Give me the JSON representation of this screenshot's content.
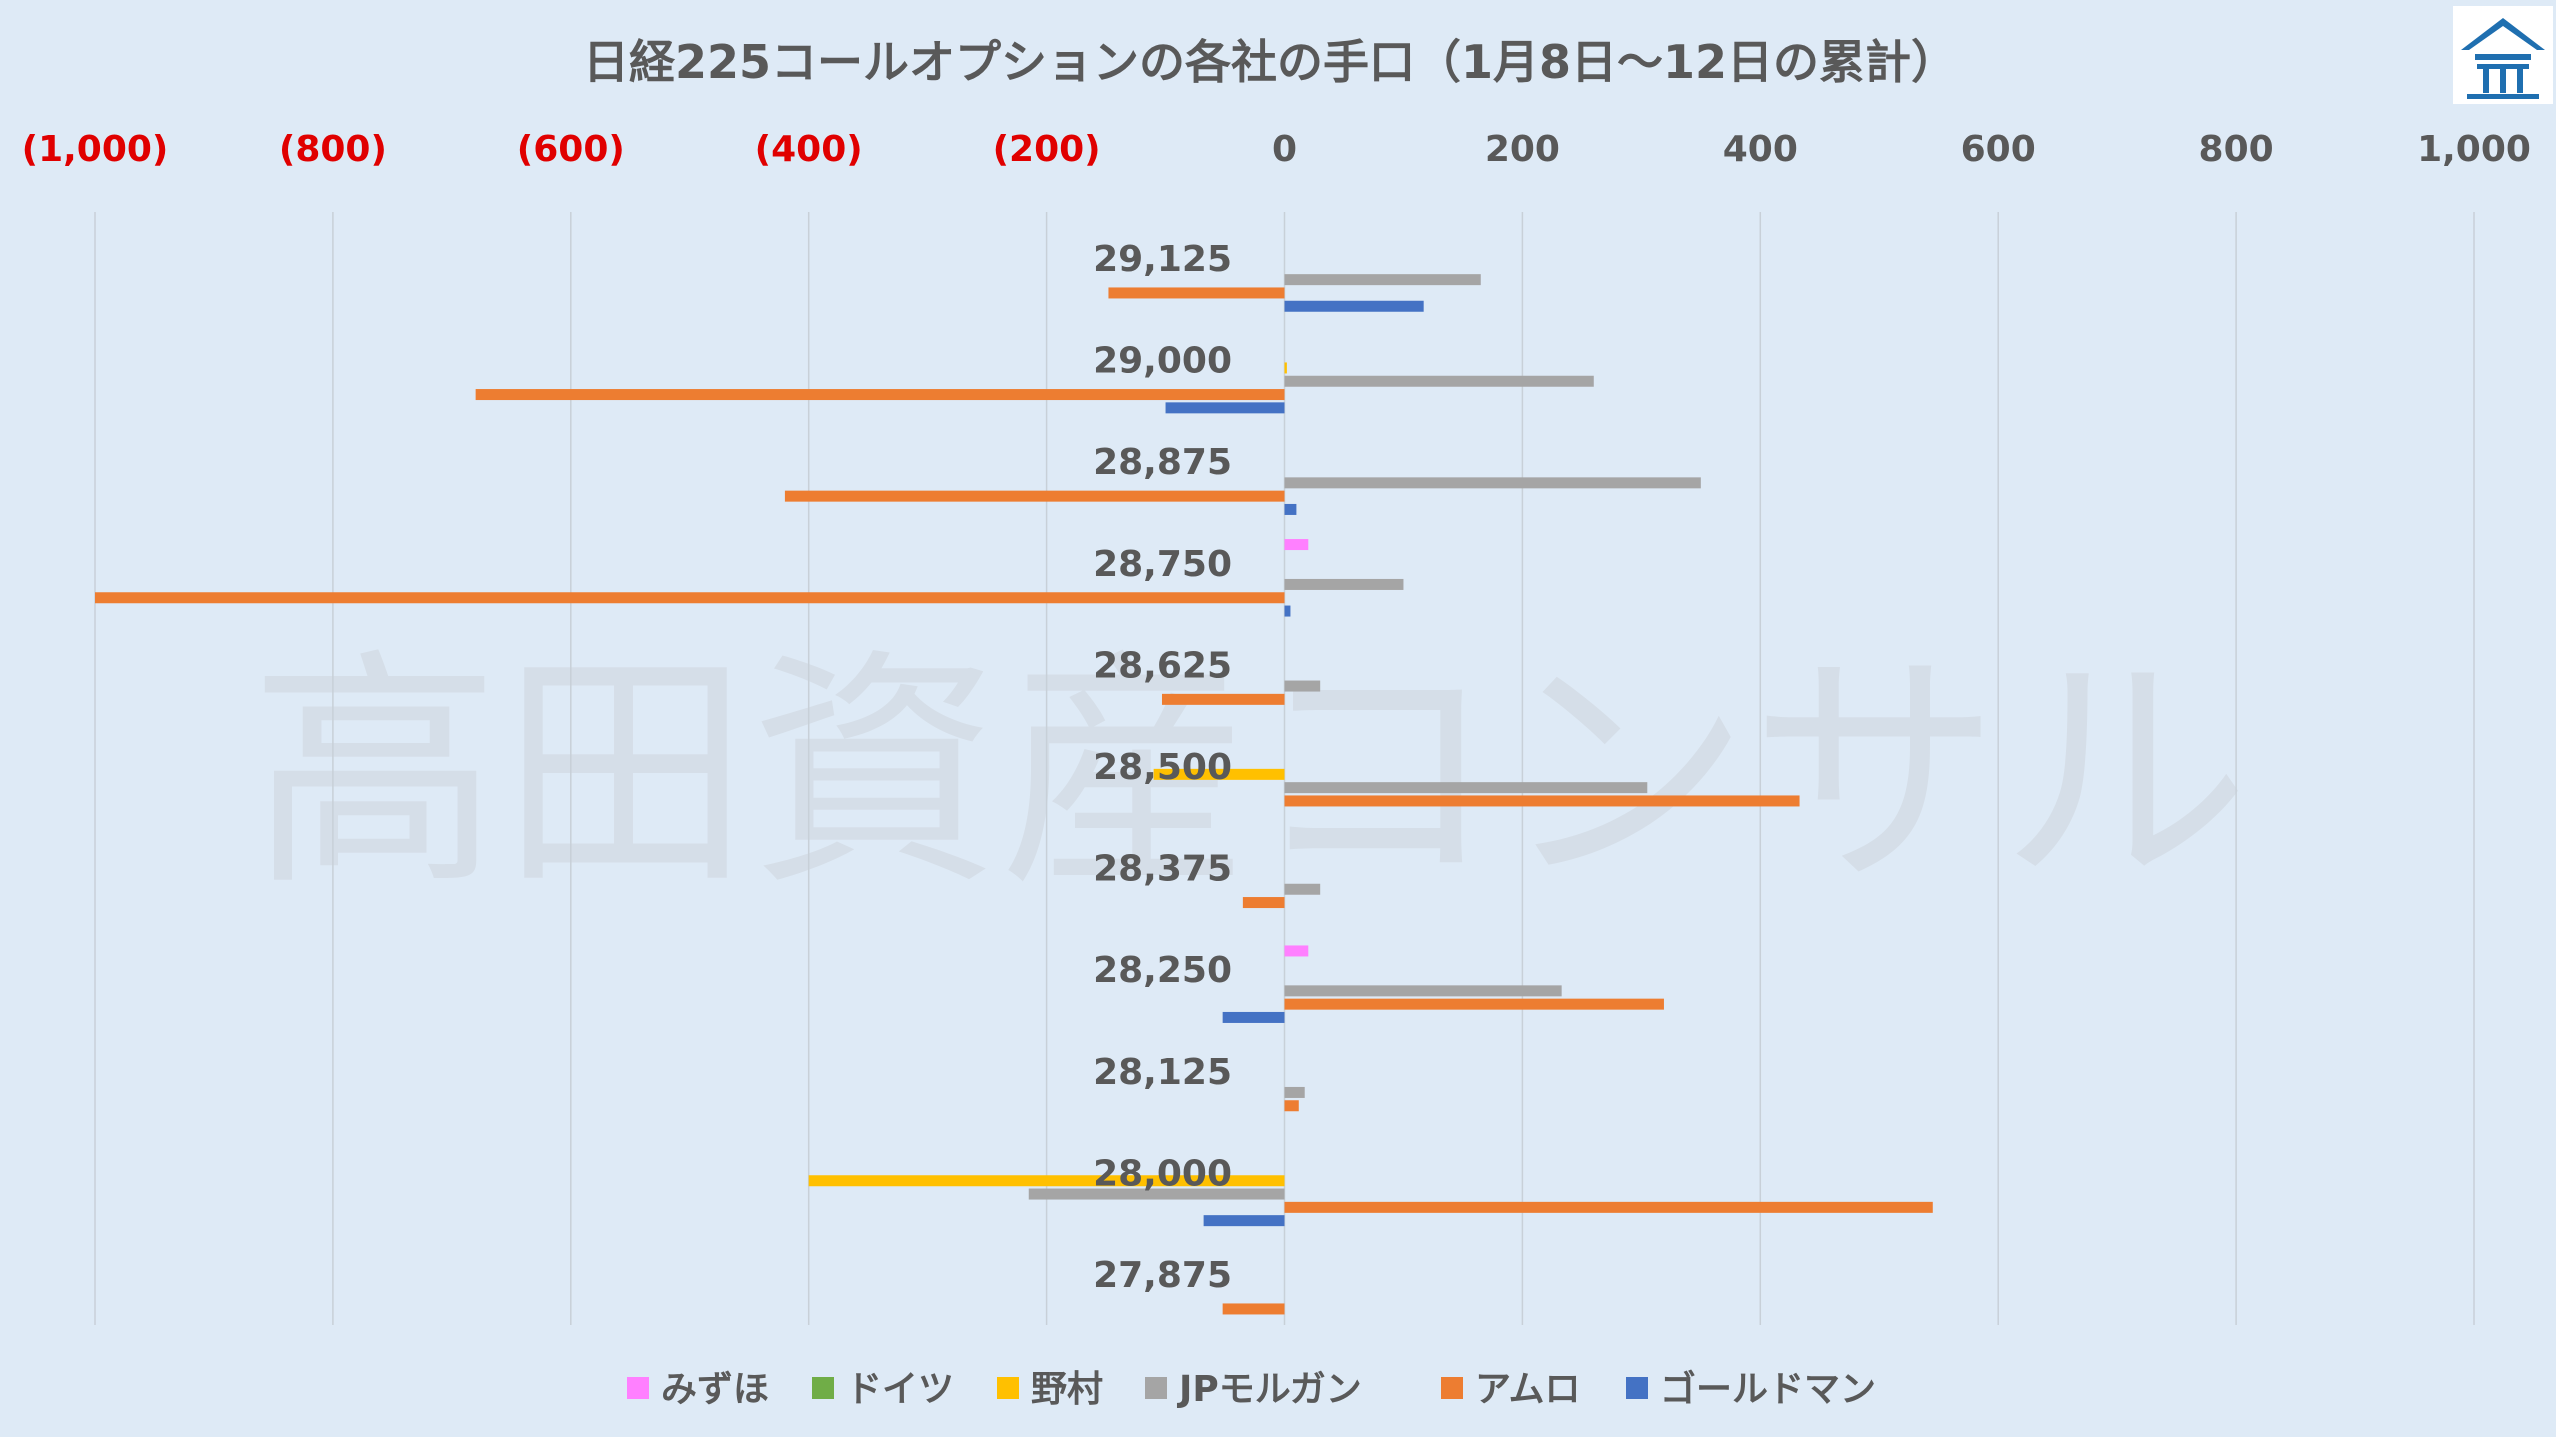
{
  "chart_data": {
    "type": "bar",
    "orientation": "horizontal",
    "title": "日経225コールオプションの各社の手口（1月8日～12日の累計）",
    "xlabel": "",
    "ylabel": "",
    "xlim": [
      -1000,
      1000
    ],
    "x_ticks": [
      {
        "value": -1000,
        "label": "(1,000)"
      },
      {
        "value": -800,
        "label": "(800)"
      },
      {
        "value": -600,
        "label": "(600)"
      },
      {
        "value": -400,
        "label": "(400)"
      },
      {
        "value": -200,
        "label": "(200)"
      },
      {
        "value": 0,
        "label": "0"
      },
      {
        "value": 200,
        "label": "200"
      },
      {
        "value": 400,
        "label": "400"
      },
      {
        "value": 600,
        "label": "600"
      },
      {
        "value": 800,
        "label": "800"
      },
      {
        "value": 1000,
        "label": "1,000"
      }
    ],
    "negative_tick_color": "#e00000",
    "grid": true,
    "legend_position": "bottom",
    "categories": [
      "29,125",
      "29,000",
      "28,875",
      "28,750",
      "28,625",
      "28,500",
      "28,375",
      "28,250",
      "28,125",
      "28,000",
      "27,875"
    ],
    "series": [
      {
        "name": "みずほ",
        "color": "#ff80ff",
        "values": [
          0,
          0,
          0,
          20,
          0,
          0,
          0,
          20,
          0,
          0,
          0
        ]
      },
      {
        "name": "ドイツ",
        "color": "#70ad47",
        "values": [
          0,
          0,
          0,
          0,
          0,
          0,
          0,
          0,
          0,
          0,
          0
        ]
      },
      {
        "name": "野村",
        "color": "#ffc000",
        "values": [
          0,
          2,
          0,
          0,
          0,
          -110,
          0,
          0,
          0,
          -400,
          0
        ]
      },
      {
        "name": "JPモルガン",
        "color": "#a5a5a5",
        "values": [
          165,
          260,
          350,
          100,
          30,
          305,
          30,
          233,
          17,
          -215,
          0
        ]
      },
      {
        "name": "アムロ",
        "color": "#ed7d31",
        "values": [
          -148,
          -680,
          -420,
          -1000,
          -103,
          433,
          -35,
          319,
          12,
          545,
          -52
        ]
      },
      {
        "name": "ゴールドマン",
        "color": "#4472c4",
        "values": [
          117,
          -100,
          10,
          5,
          0,
          0,
          0,
          -52,
          0,
          -68,
          0
        ]
      }
    ]
  },
  "watermark": "高田資産コンサル",
  "logo_icon": "house-logo-icon"
}
